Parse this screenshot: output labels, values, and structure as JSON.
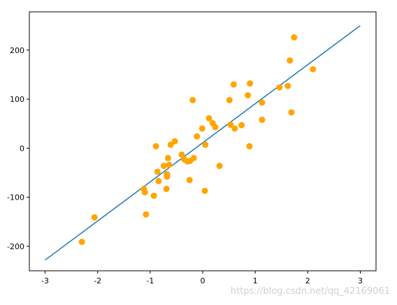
{
  "chart_data": {
    "type": "scatter",
    "xlim": [
      -3.3,
      3.3
    ],
    "ylim": [
      -250,
      278
    ],
    "xticks": [
      -3,
      -2,
      -1,
      0,
      1,
      2,
      3
    ],
    "yticks": [
      -200,
      -100,
      0,
      100,
      200
    ],
    "grid": false,
    "annotations": [
      "https://blog.csdn.net/qq_42169061"
    ],
    "series": [
      {
        "type": "line",
        "color": "#1f77b4",
        "x": [
          -3,
          3
        ],
        "values": [
          -228,
          250
        ]
      },
      {
        "type": "scatter",
        "color": "orange",
        "x": [
          -2.3,
          -2.06,
          -1.12,
          -1.1,
          -1.08,
          -0.93,
          -0.89,
          -0.86,
          -0.84,
          -0.74,
          -0.69,
          -0.68,
          -0.68,
          -0.66,
          -0.64,
          -0.61,
          -0.53,
          -0.4,
          -0.35,
          -0.29,
          -0.25,
          -0.24,
          -0.17,
          -0.19,
          -0.11,
          -0.01,
          0.04,
          0.05,
          0.12,
          0.19,
          0.24,
          0.32,
          0.51,
          0.53,
          0.59,
          0.61,
          0.74,
          0.86,
          0.9,
          0.89,
          1.13,
          1.13,
          1.46,
          1.62,
          1.66,
          1.69,
          1.74,
          2.1
        ],
        "values": [
          -191,
          -141,
          -83,
          -90,
          -135,
          -97,
          4,
          -48,
          -67,
          -36,
          -83,
          -53,
          -58,
          -20,
          -34,
          7,
          14,
          -13,
          -23,
          -27,
          -65,
          -26,
          -20,
          98,
          24,
          40,
          -87,
          7,
          61,
          51,
          43,
          -36,
          98,
          48,
          130,
          40,
          47,
          108,
          132,
          4,
          93,
          58,
          124,
          127,
          179,
          73,
          226,
          161
        ]
      }
    ]
  }
}
